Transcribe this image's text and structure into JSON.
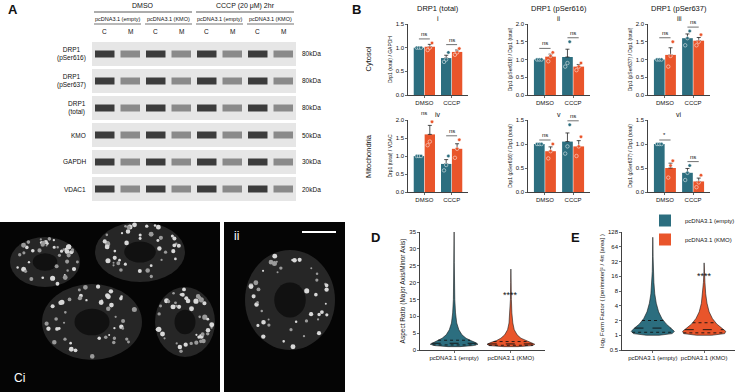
{
  "panel_labels": [
    "A",
    "B"
  ],
  "blot": {
    "groups": [
      {
        "label": "DMSO",
        "subgroups": [
          "pcDNA3.1 (empty)",
          "pcDNA3.1 (KMO)"
        ]
      },
      {
        "label": "CCCP (20 μM) 2hr",
        "subgroups": [
          "pcDNA3.1 (empty)",
          "pcDNA3.1 (KMO)"
        ]
      }
    ],
    "fractions": [
      "C",
      "M"
    ],
    "rows": [
      {
        "label": "DRP1 (pSer616)",
        "size": "80kDa"
      },
      {
        "label": "DRP1 (pSer637)",
        "size": "80kDa"
      },
      {
        "label": "DRP1 (total)",
        "size": "80kDa"
      },
      {
        "label": "KMO",
        "size": "50kDa"
      },
      {
        "label": "GAPDH",
        "size": "30kDa"
      },
      {
        "label": "VDAC1",
        "size": "20kDa"
      }
    ]
  },
  "panel_B": {
    "column_titles": [
      "DRP1 (total)",
      "DRP1 (pSer616)",
      "DRP1 (pSer637)"
    ],
    "row_titles": [
      "Cytosol",
      "Mitochondria"
    ]
  },
  "microscopy": {
    "labels": [
      "Ci",
      "ii"
    ]
  },
  "chart_data": [
    {
      "type": "bar",
      "label": "i",
      "categories": [
        "DMSO",
        "CCCP"
      ],
      "y_label": "Drp1 (total) / GAPDH",
      "grid": false,
      "ylim": [
        0,
        1.5
      ],
      "yticks": [
        {
          "value": 0,
          "label": "0.0"
        },
        0.5,
        {
          "value": 1,
          "label": "1.0"
        },
        1.5
      ],
      "series": [
        {
          "name": "pcDNA3.1 (empty)",
          "color": "#2c6e7f",
          "values": [
            1.0,
            0.78
          ],
          "errors": [
            0,
            0.06
          ],
          "points": [
            [
              1,
              1,
              1
            ],
            [
              0.7,
              0.75,
              0.9
            ]
          ]
        },
        {
          "name": "pcDNA3.1 (KMO)",
          "color": "#e9552b",
          "values": [
            1.02,
            0.91
          ],
          "errors": [
            0.05,
            0.04
          ],
          "points": [
            [
              0.95,
              1.0,
              1.1
            ],
            [
              0.85,
              0.9,
              0.98
            ]
          ]
        }
      ],
      "annotations": [
        {
          "category": "DMSO",
          "text": "ns"
        },
        {
          "category": "CCCP",
          "text": "ns"
        }
      ]
    },
    {
      "type": "bar",
      "label": "ii",
      "categories": [
        "DMSO",
        "CCCP"
      ],
      "y_label": "Drp1 (pSer616) / Drp1 (total)",
      "grid": false,
      "ylim": [
        0,
        2
      ],
      "yticks": [
        {
          "value": 0,
          "label": "0.0"
        },
        0.5,
        {
          "value": 1,
          "label": "1.0"
        },
        1.5,
        {
          "value": 2,
          "label": "2.0"
        }
      ],
      "series": [
        {
          "name": "pcDNA3.1 (empty)",
          "color": "#2c6e7f",
          "values": [
            1.0,
            1.07
          ],
          "errors": [
            0,
            0.22
          ],
          "points": [
            [
              1,
              1,
              1
            ],
            [
              0.8,
              0.9,
              1.5
            ]
          ]
        },
        {
          "name": "pcDNA3.1 (KMO)",
          "color": "#e9552b",
          "values": [
            1.08,
            0.8
          ],
          "errors": [
            0.07,
            0.06
          ],
          "points": [
            [
              0.95,
              1.1,
              1.2
            ],
            [
              0.7,
              0.8,
              0.9
            ]
          ]
        }
      ],
      "annotations": [
        {
          "category": "DMSO",
          "text": "ns"
        },
        {
          "category": "CCCP",
          "text": "ns"
        }
      ]
    },
    {
      "type": "bar",
      "label": "iii",
      "categories": [
        "DMSO",
        "CCCP"
      ],
      "y_label": "Drp1 (pSer637) / Drp1 (total)",
      "grid": false,
      "ylim": [
        0,
        2
      ],
      "yticks": [
        {
          "value": 0,
          "label": "0.0"
        },
        0.5,
        {
          "value": 1,
          "label": "1.0"
        },
        1.5,
        {
          "value": 2,
          "label": "2.0"
        }
      ],
      "series": [
        {
          "name": "pcDNA3.1 (empty)",
          "color": "#2c6e7f",
          "values": [
            1.0,
            1.6
          ],
          "errors": [
            0,
            0.12
          ],
          "points": [
            [
              1,
              1,
              1
            ],
            [
              1.4,
              1.6,
              1.8
            ]
          ]
        },
        {
          "name": "pcDNA3.1 (KMO)",
          "color": "#e9552b",
          "values": [
            1.13,
            1.53
          ],
          "errors": [
            0.2,
            0.09
          ],
          "points": [
            [
              0.8,
              1.1,
              1.5
            ],
            [
              1.4,
              1.5,
              1.7
            ]
          ]
        }
      ],
      "annotations": [
        {
          "category": "DMSO",
          "text": "ns"
        },
        {
          "category": "CCCP",
          "text": "ns"
        }
      ]
    },
    {
      "type": "bar",
      "label": "iv",
      "categories": [
        "DMSO",
        "CCCP"
      ],
      "y_label": "Drp1 (total) / VDAC",
      "grid": false,
      "ylim": [
        0,
        2
      ],
      "yticks": [
        {
          "value": 0,
          "label": "0.0"
        },
        0.5,
        {
          "value": 1,
          "label": "1.0"
        },
        1.5,
        {
          "value": 2,
          "label": "2.0"
        }
      ],
      "series": [
        {
          "name": "pcDNA3.1 (empty)",
          "color": "#2c6e7f",
          "values": [
            1.0,
            0.78
          ],
          "errors": [
            0,
            0.12
          ],
          "points": [
            [
              1,
              1,
              1
            ],
            [
              0.6,
              0.75,
              1.0
            ]
          ]
        },
        {
          "name": "pcDNA3.1 (KMO)",
          "color": "#e9552b",
          "values": [
            1.6,
            1.2
          ],
          "errors": [
            0.25,
            0.14
          ],
          "points": [
            [
              1.3,
              1.4,
              1.95
            ],
            [
              0.95,
              1.2,
              1.45
            ]
          ]
        }
      ],
      "annotations": [
        {
          "category": "DMSO",
          "text": "ns"
        },
        {
          "category": "CCCP",
          "text": "ns"
        }
      ]
    },
    {
      "type": "bar",
      "label": "v",
      "categories": [
        "DMSO",
        "CCCP"
      ],
      "y_label": "Drp1 (pSer616) / Drp1 (total)",
      "grid": false,
      "ylim": [
        0,
        1.5
      ],
      "yticks": [
        {
          "value": 0,
          "label": "0.0"
        },
        0.5,
        {
          "value": 1,
          "label": "1.0"
        },
        1.5
      ],
      "series": [
        {
          "name": "pcDNA3.1 (empty)",
          "color": "#2c6e7f",
          "values": [
            1.0,
            1.05
          ],
          "errors": [
            0,
            0.18
          ],
          "points": [
            [
              1,
              1,
              1
            ],
            [
              0.8,
              0.95,
              1.4
            ]
          ]
        },
        {
          "name": "pcDNA3.1 (KMO)",
          "color": "#e9552b",
          "values": [
            0.85,
            0.95
          ],
          "errors": [
            0.09,
            0.12
          ],
          "points": [
            [
              0.7,
              0.85,
              1.0
            ],
            [
              0.75,
              0.95,
              1.15
            ]
          ]
        }
      ],
      "annotations": [
        {
          "category": "DMSO",
          "text": "ns"
        },
        {
          "category": "CCCP",
          "text": "ns"
        }
      ]
    },
    {
      "type": "bar",
      "label": "vi",
      "categories": [
        "DMSO",
        "CCCP"
      ],
      "y_label": "Drp1 (pSer637) / Drp1 (total)",
      "grid": false,
      "legend": "bottom right",
      "ylim": [
        0,
        1.5
      ],
      "yticks": [
        {
          "value": 0,
          "label": "0.0"
        },
        0.5,
        {
          "value": 1,
          "label": "1.0"
        },
        1.5
      ],
      "series": [
        {
          "name": "pcDNA3.1 (empty)",
          "color": "#2c6e7f",
          "values": [
            1.0,
            0.4
          ],
          "errors": [
            0,
            0.09
          ],
          "points": [
            [
              1,
              1,
              1
            ],
            [
              0.25,
              0.4,
              0.55
            ]
          ]
        },
        {
          "name": "pcDNA3.1 (KMO)",
          "color": "#e9552b",
          "values": [
            0.5,
            0.22
          ],
          "errors": [
            0.1,
            0.07
          ],
          "points": [
            [
              0.3,
              0.55,
              0.65
            ],
            [
              0.1,
              0.2,
              0.35
            ]
          ]
        }
      ],
      "annotations": [
        {
          "category": "DMSO",
          "text": "*"
        },
        {
          "category": "CCCP",
          "text": "ns"
        }
      ]
    },
    {
      "type": "violin",
      "label": "D",
      "categories": [
        "pcDNA3.1 (empty)",
        "pcDNA3.1 (KMO)"
      ],
      "y_label": "Aspect Ratio (Major Axis/Minor Axis)",
      "grid": false,
      "ylim": [
        0,
        35
      ],
      "yticks": [
        0,
        5,
        10,
        15,
        20,
        25,
        30,
        35
      ],
      "series": [
        {
          "name": "pcDNA3.1 (empty)",
          "color": "#2c6e7f",
          "quartiles": [
            1.5,
            2.0,
            2.9
          ],
          "density": {
            "y": [
              1,
              1.3,
              1.7,
              2.2,
              2.8,
              3.5,
              4.5,
              6,
              8,
              11,
              15,
              20,
              26,
              35
            ],
            "width": [
              0.25,
              0.8,
              1.0,
              0.9,
              0.7,
              0.5,
              0.33,
              0.2,
              0.11,
              0.06,
              0.03,
              0.015,
              0.008,
              0.002
            ]
          }
        },
        {
          "name": "pcDNA3.1 (KMO)",
          "color": "#e9552b",
          "quartiles": [
            1.4,
            1.8,
            2.5
          ],
          "density": {
            "y": [
              1,
              1.3,
              1.7,
              2.2,
              2.8,
              3.5,
              4.5,
              6,
              8,
              11,
              15,
              20,
              24
            ],
            "width": [
              0.3,
              0.9,
              1.0,
              0.85,
              0.6,
              0.42,
              0.26,
              0.14,
              0.08,
              0.04,
              0.02,
              0.008,
              0.002
            ]
          }
        }
      ],
      "annotations": [
        {
          "category": "pcDNA3.1 (KMO)",
          "text": "****"
        }
      ]
    },
    {
      "type": "violin",
      "label": "E",
      "categories": [
        "pcDNA3.1 (empty)",
        "pcDNA3.1 (KMO)"
      ],
      "y_label": "log₂ Form Factor ( [perimeter]² / 4π [area] )",
      "grid": false,
      "log": "y",
      "ylim": [
        0.5,
        128
      ],
      "yticks": [
        0.5,
        1,
        2,
        4,
        8,
        16,
        32,
        64,
        128
      ],
      "series": [
        {
          "name": "pcDNA3.1 (empty)",
          "color": "#2c6e7f",
          "quartiles": [
            1.15,
            1.4,
            2.0
          ],
          "density": {
            "y": [
              1,
              1.08,
              1.2,
              1.4,
              1.7,
              2.2,
              3,
              4.5,
              7,
              12,
              20,
              40,
              70,
              100
            ],
            "width": [
              0.3,
              0.9,
              1.0,
              0.85,
              0.62,
              0.42,
              0.27,
              0.16,
              0.09,
              0.05,
              0.025,
              0.012,
              0.006,
              0.002
            ]
          }
        },
        {
          "name": "pcDNA3.1 (KMO)",
          "color": "#e9552b",
          "quartiles": [
            1.12,
            1.3,
            1.8
          ],
          "density": {
            "y": [
              1,
              1.08,
              1.2,
              1.4,
              1.7,
              2.2,
              3,
              4.5,
              7,
              12,
              20,
              30
            ],
            "width": [
              0.35,
              0.95,
              1.0,
              0.8,
              0.58,
              0.38,
              0.23,
              0.13,
              0.07,
              0.035,
              0.012,
              0.003
            ]
          }
        }
      ],
      "annotations": [
        {
          "category": "pcDNA3.1 (KMO)",
          "text": "****"
        }
      ]
    }
  ]
}
